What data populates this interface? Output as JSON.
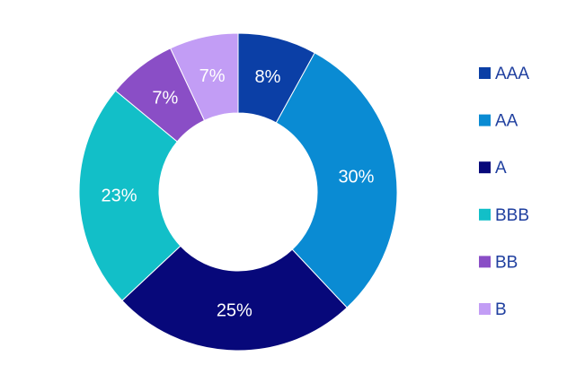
{
  "chart_data": {
    "type": "donut",
    "categories": [
      "AAA",
      "AA",
      "A",
      "BBB",
      "BB",
      "B"
    ],
    "values": [
      8,
      30,
      25,
      23,
      7,
      7
    ],
    "value_labels": [
      "8%",
      "30%",
      "25%",
      "23%",
      "7%",
      "7%"
    ],
    "colors": [
      "#0b3fa6",
      "#0a8bd3",
      "#07087a",
      "#12bfc8",
      "#8a4ec6",
      "#c29df5"
    ],
    "legend": "right"
  }
}
